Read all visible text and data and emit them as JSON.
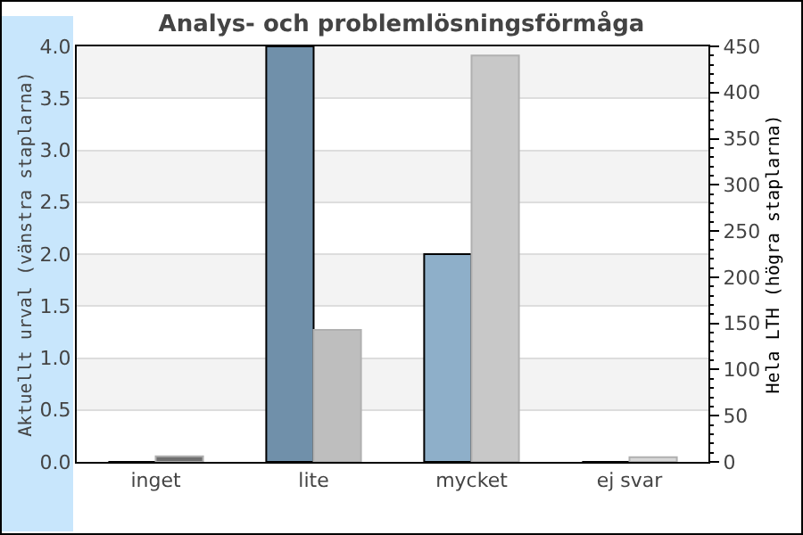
{
  "chart_data": {
    "type": "bar",
    "title": "Analys- och problemlösningsförmåga",
    "ylabel": "Aktuellt urval (vänstra staplarna)",
    "y2label": "Hela LTH (högra staplarna)",
    "categories": [
      "inget",
      "lite",
      "mycket",
      "ej svar"
    ],
    "series": [
      {
        "colors": [
          "#7090aa",
          "#7090aa",
          "#8eafc9",
          "#8eafc9"
        ],
        "values": [
          0,
          4,
          2,
          0
        ]
      },
      {
        "axis": "y2",
        "colors": [
          "#707070",
          "#bebebe",
          "#c8c8c8",
          "#d8d8d8"
        ],
        "values": [
          6,
          143,
          440,
          5
        ]
      }
    ],
    "ylim": [
      0,
      4
    ],
    "yticks": [
      {
        "value": 0,
        "label": "0.0"
      },
      {
        "value": 0.5,
        "label": "0.5"
      },
      {
        "value": 1,
        "label": "1.0"
      },
      {
        "value": 1.5,
        "label": "1.5"
      },
      {
        "value": 2,
        "label": "2.0"
      },
      {
        "value": 2.5,
        "label": "2.5"
      },
      {
        "value": 3,
        "label": "3.0"
      },
      {
        "value": 3.5,
        "label": "3.5"
      },
      {
        "value": 4,
        "label": "4.0"
      }
    ],
    "y2lim": [
      0,
      450
    ],
    "y2ticks": [
      0,
      50,
      100,
      150,
      200,
      250,
      300,
      350,
      400,
      450
    ],
    "grid": "y"
  }
}
